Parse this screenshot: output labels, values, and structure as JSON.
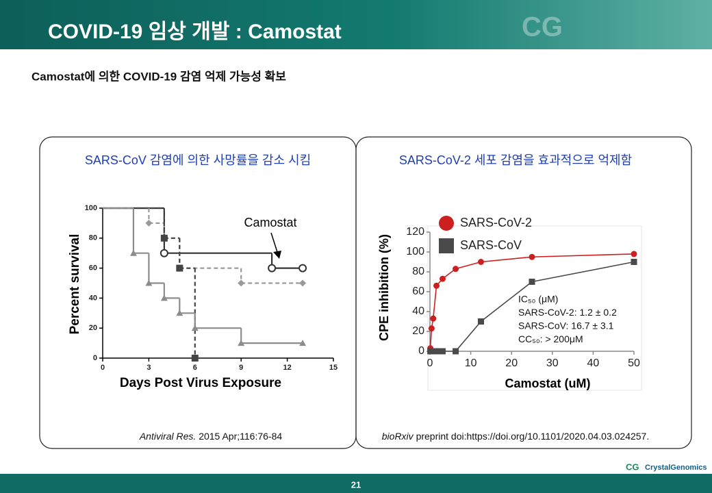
{
  "header": {
    "title": "COVID-19 임상 개발 : Camostat",
    "subtitle": "Camostat에 의한 COVID-19 감염 억제 가능성 확보"
  },
  "footer": {
    "page": "21",
    "logo": "CrystalGenomics"
  },
  "chart_data": [
    {
      "type": "step",
      "title": "SARS-CoV 감염에 의한 사망률을 감소 시킴",
      "x_label": "Days Post Virus Exposure",
      "y_label": "Percent survival",
      "xlim": [
        0,
        15
      ],
      "xticks": [
        0,
        3,
        6,
        9,
        12,
        15
      ],
      "ylim": [
        0,
        100
      ],
      "yticks": [
        0,
        20,
        40,
        60,
        80,
        100
      ],
      "annotation": "Camostat",
      "series": [
        {
          "color": "#333333",
          "marker": "circle-open",
          "dash": false,
          "x": [
            0,
            4,
            11,
            13
          ],
          "values": [
            100,
            70,
            60,
            60
          ]
        },
        {
          "color": "#9a9a9a",
          "marker": "diamond",
          "dash": true,
          "x": [
            0,
            3,
            4,
            5,
            9,
            13
          ],
          "values": [
            100,
            90,
            80,
            60,
            50,
            50
          ]
        },
        {
          "color": "#444444",
          "marker": "square",
          "dash": true,
          "x": [
            0,
            4,
            5,
            6
          ],
          "values": [
            100,
            80,
            60,
            0
          ]
        },
        {
          "color": "#8c8c8c",
          "marker": "triangle",
          "dash": false,
          "x": [
            0,
            2,
            3,
            4,
            5,
            6,
            9,
            13
          ],
          "values": [
            100,
            70,
            50,
            40,
            30,
            20,
            10,
            10
          ]
        }
      ],
      "source": {
        "journal": "Antiviral Res.",
        "text": "2015 Apr;116:76-84"
      }
    },
    {
      "type": "line",
      "title": "SARS-CoV-2 세포 감염을 효과적으로 억제함",
      "x_label": "Camostat (uM)",
      "y_label": "CPE inhibition (%)",
      "xlim": [
        0,
        50
      ],
      "xticks": [
        0,
        10,
        20,
        30,
        40,
        50
      ],
      "ylim": [
        0,
        120
      ],
      "yticks": [
        0,
        20,
        40,
        60,
        80,
        100,
        120
      ],
      "annotation": [
        "IC₅₀ (μM)",
        "SARS-CoV-2: 1.2 ± 0.2",
        "SARS-CoV: 16.7 ± 3.1",
        "CC₅₀: > 200μM"
      ],
      "series": [
        {
          "name": "SARS-CoV-2",
          "color": "#cc1f1f",
          "marker": "circle",
          "x": [
            0.1,
            0.4,
            0.8,
            1.6,
            3.1,
            6.3,
            12.5,
            25,
            50
          ],
          "values": [
            3,
            23,
            33,
            66,
            73,
            83,
            90,
            95,
            98
          ]
        },
        {
          "name": "SARS-CoV",
          "color": "#4a4a4a",
          "marker": "square",
          "x": [
            0.1,
            0.8,
            1.6,
            3.1,
            6.3,
            12.5,
            25,
            50
          ],
          "values": [
            0,
            0,
            0,
            0,
            0,
            30,
            70,
            90
          ]
        }
      ],
      "source": {
        "journal": "bioRxiv",
        "text": "preprint doi:https://doi.org/10.1101/2020.04.03.024257."
      }
    }
  ]
}
